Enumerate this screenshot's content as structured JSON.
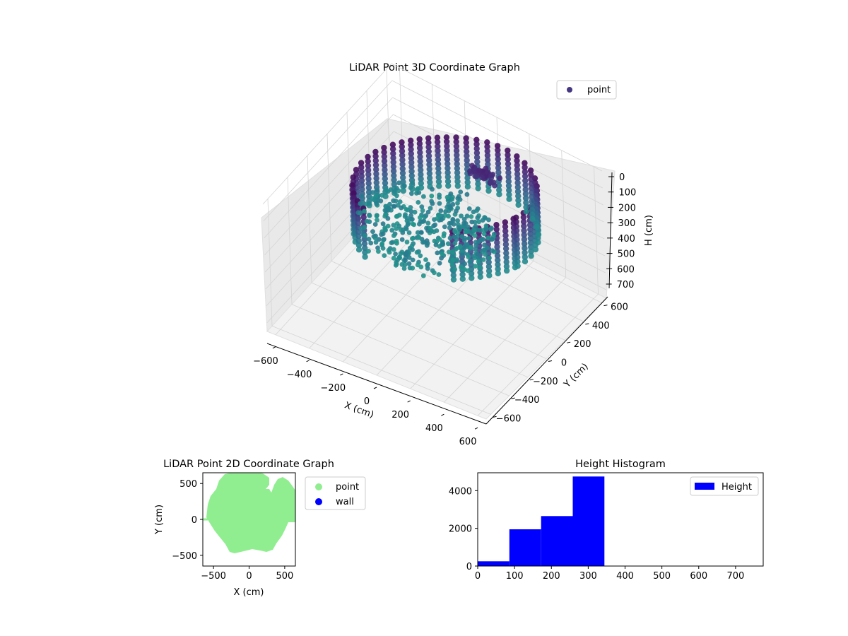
{
  "figure": {
    "background": "#ffffff"
  },
  "chart_data": [
    {
      "type": "scatter3d",
      "title": "LiDAR Point 3D Coordinate Graph",
      "xlabel": "X (cm)",
      "ylabel": "Y (cm)",
      "zlabel": "H (cm)",
      "x_ticks": [
        -600,
        -400,
        -200,
        0,
        200,
        400,
        600
      ],
      "y_ticks": [
        -600,
        -400,
        -200,
        0,
        200,
        400,
        600
      ],
      "z_ticks": [
        0,
        100,
        200,
        300,
        400,
        500,
        600,
        700
      ],
      "xlim": [
        -650,
        650
      ],
      "ylim": [
        -650,
        650
      ],
      "zlim": [
        0,
        750
      ],
      "z_inverted": true,
      "grid": true,
      "legend": {
        "placement": "top-right",
        "entries": [
          {
            "label": "point",
            "color": "#453781"
          }
        ]
      },
      "colormap": "viridis"
    },
    {
      "type": "scatter",
      "title": "LiDAR Point 2D Coordinate Graph",
      "xlabel": "X (cm)",
      "ylabel": "Y (cm)",
      "x_ticks": [
        -500,
        0,
        500
      ],
      "y_ticks": [
        500,
        0,
        -500
      ],
      "xlim": [
        -650,
        650
      ],
      "ylim": [
        -650,
        650
      ],
      "series": [
        {
          "name": "point",
          "color": "#90ee90"
        },
        {
          "name": "wall",
          "color": "#0000ff"
        }
      ],
      "legend": {
        "placement": "outside-right",
        "entries": [
          {
            "label": "point",
            "color": "#90ee90"
          },
          {
            "label": "wall",
            "color": "#0000ff"
          }
        ]
      }
    },
    {
      "type": "bar",
      "title": "Height Histogram",
      "x_ticks": [
        0,
        100,
        200,
        300,
        400,
        500,
        600,
        700
      ],
      "y_ticks": [
        0,
        2000,
        4000
      ],
      "xlim": [
        0,
        775
      ],
      "ylim": [
        0,
        4950
      ],
      "bin_edges": [
        0,
        86,
        172,
        258,
        344,
        430,
        516,
        602,
        688,
        774
      ],
      "values": [
        250,
        1950,
        2650,
        4750,
        0,
        0,
        0,
        0,
        0
      ],
      "color": "#0000ff",
      "legend": {
        "placement": "top-right",
        "entries": [
          {
            "label": "Height",
            "color": "#0000ff"
          }
        ]
      }
    }
  ]
}
